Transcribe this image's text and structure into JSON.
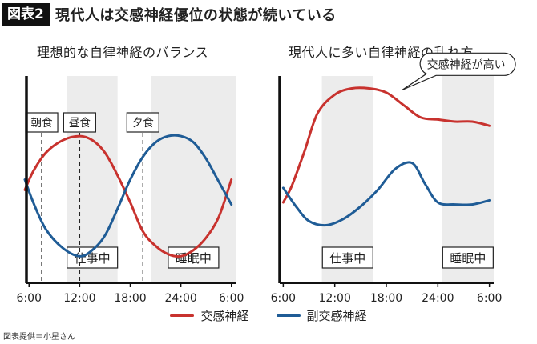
{
  "figure": {
    "badge": "図表2",
    "title": "現代人は交感神経優位の状態が続いている"
  },
  "legend": {
    "sympathetic": "交感神経",
    "parasympathetic": "副交感神経"
  },
  "colors": {
    "sympathetic": "#c8322e",
    "parasympathetic": "#1f5c96",
    "band": "#ececec",
    "axis": "#111111"
  },
  "credit": "図表提供＝小星さん",
  "chart_data": [
    {
      "type": "line",
      "title": "理想的な自律神経のバランス",
      "x_ticks": [
        "6:00",
        "12:00",
        "18:00",
        "24:00",
        "6:00"
      ],
      "x_hours": [
        6,
        12,
        18,
        24,
        30
      ],
      "xlim": [
        5.5,
        30.5
      ],
      "ylim": [
        0,
        10
      ],
      "grid": false,
      "y_axis_labels": false,
      "bands": [
        {
          "start": 10.5,
          "end": 16.5,
          "label": "仕事中"
        },
        {
          "start": 20.5,
          "end": 30.5,
          "label": "睡眠中"
        }
      ],
      "events": [
        {
          "hour": 7.5,
          "label": "朝食"
        },
        {
          "hour": 12,
          "label": "昼食"
        },
        {
          "hour": 19.5,
          "label": "夕食"
        }
      ],
      "series": [
        {
          "name": "交感神経",
          "x": [
            5.5,
            6.5,
            8,
            10,
            12,
            13.5,
            15,
            16.5,
            18,
            19.5,
            21,
            22.5,
            24,
            25.5,
            27,
            28.5,
            30
          ],
          "y": [
            4.5,
            5.4,
            6.3,
            6.9,
            7.1,
            6.9,
            6.3,
            5.2,
            3.9,
            2.5,
            1.8,
            1.4,
            1.3,
            1.6,
            2.2,
            3.2,
            5.0
          ]
        },
        {
          "name": "副交感神経",
          "x": [
            5.5,
            6.5,
            8,
            10,
            12,
            13.5,
            15,
            16.5,
            18,
            19.5,
            21,
            22.5,
            24,
            25.5,
            27,
            28.5,
            30
          ],
          "y": [
            5.0,
            3.9,
            2.6,
            1.7,
            1.3,
            1.6,
            2.3,
            3.6,
            5.0,
            6.1,
            6.8,
            7.1,
            7.1,
            6.8,
            6.0,
            4.9,
            3.8
          ]
        }
      ]
    },
    {
      "type": "line",
      "title": "現代人に多い自律神経の乱れ方",
      "x_ticks": [
        "6:00",
        "12:00",
        "18:00",
        "24:00",
        "6:00"
      ],
      "x_hours": [
        6,
        12,
        18,
        24,
        30
      ],
      "xlim": [
        5.5,
        30.5
      ],
      "ylim": [
        0,
        10
      ],
      "grid": false,
      "y_axis_labels": false,
      "bands": [
        {
          "start": 10.5,
          "end": 16.5,
          "label": "仕事中"
        },
        {
          "start": 24.5,
          "end": 30.5,
          "label": "睡眠中"
        }
      ],
      "annotations": [
        {
          "text": "交感神経が高い",
          "x": 19.5,
          "y": 9.1
        }
      ],
      "series": [
        {
          "name": "交感神経",
          "x": [
            6,
            7,
            8.5,
            10,
            12,
            14,
            16,
            18,
            20,
            22,
            24,
            26,
            28,
            30
          ],
          "y": [
            3.9,
            4.7,
            6.4,
            8.2,
            9.1,
            9.4,
            9.4,
            9.2,
            8.6,
            8.0,
            7.9,
            7.8,
            7.8,
            7.6
          ]
        },
        {
          "name": "副交感神経",
          "x": [
            6,
            7.5,
            9,
            11,
            13,
            15,
            17,
            19,
            21,
            22.5,
            24,
            26,
            28,
            30
          ],
          "y": [
            4.6,
            3.7,
            3.0,
            2.8,
            3.1,
            3.7,
            4.5,
            5.5,
            5.8,
            4.8,
            3.9,
            3.8,
            3.8,
            4.0
          ]
        }
      ]
    }
  ]
}
